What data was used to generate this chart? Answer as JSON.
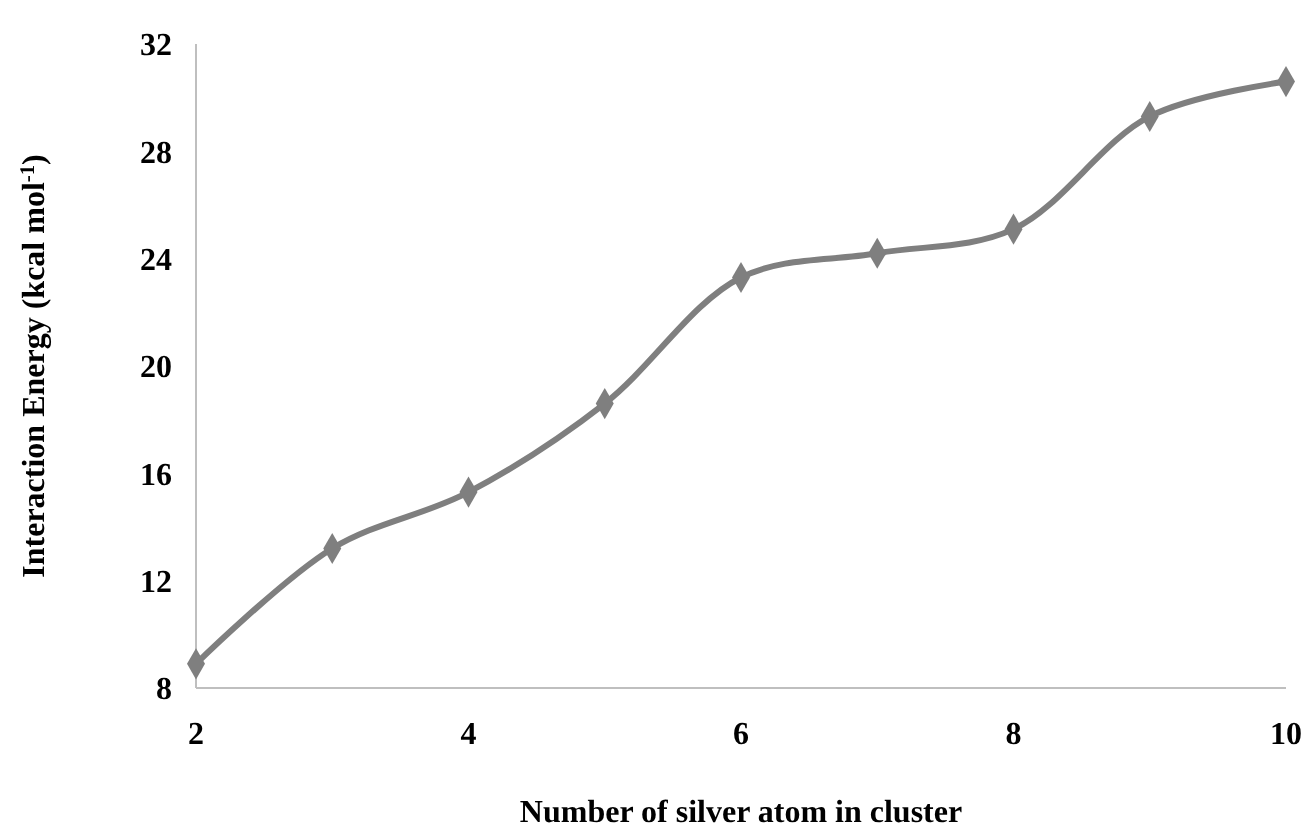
{
  "chart_data": {
    "type": "line",
    "xlabel": "Number of silver atom in cluster",
    "ylabel": "Interaction Energy (kcal mol$^{-1}$)",
    "x": [
      2,
      3,
      4,
      5,
      6,
      7,
      8,
      9,
      10
    ],
    "series": [
      {
        "color": "#7f7f7f",
        "values": [
          8.9,
          13.2,
          15.3,
          18.6,
          23.3,
          24.2,
          25.1,
          29.3,
          30.6
        ]
      }
    ],
    "xlim": [
      2,
      10
    ],
    "xticks": [
      2,
      4,
      6,
      8,
      10
    ],
    "ylim": [
      8,
      32
    ],
    "yticks": [
      8,
      12,
      16,
      20,
      24,
      28,
      32
    ],
    "grid": false,
    "marker": "diamond",
    "line_style": "solid"
  }
}
